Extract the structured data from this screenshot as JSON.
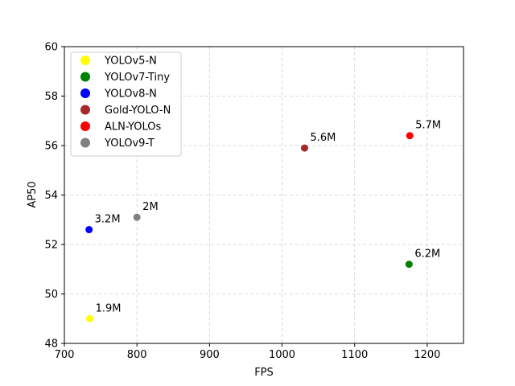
{
  "chart_data": {
    "type": "scatter",
    "xlabel": "FPS",
    "ylabel": "AP50",
    "xlim": [
      700,
      1250
    ],
    "ylim": [
      48,
      60
    ],
    "xticks": [
      "700",
      "800",
      "900",
      "1000",
      "1100",
      "1200"
    ],
    "yticks": [
      "48",
      "50",
      "52",
      "54",
      "56",
      "58",
      "60"
    ],
    "grid": true,
    "legend_position": "top-left",
    "series": [
      {
        "name": "YOLOv5-N",
        "color": "#ffff00",
        "x": 735,
        "y": 49.0,
        "label": "1.9M"
      },
      {
        "name": "YOLOv7-Tiny",
        "color": "#008000",
        "x": 1175,
        "y": 51.2,
        "label": "6.2M"
      },
      {
        "name": "YOLOv8-N",
        "color": "#0000ff",
        "x": 734,
        "y": 52.6,
        "label": "3.2M"
      },
      {
        "name": "Gold-YOLO-N",
        "color": "#a52a2a",
        "x": 1031,
        "y": 55.9,
        "label": "5.6M"
      },
      {
        "name": "ALN-YOLOs",
        "color": "#ff0000",
        "x": 1176,
        "y": 56.4,
        "label": "5.7M"
      },
      {
        "name": "YOLOv9-T",
        "color": "#808080",
        "x": 800,
        "y": 53.1,
        "label": "2M"
      }
    ]
  }
}
